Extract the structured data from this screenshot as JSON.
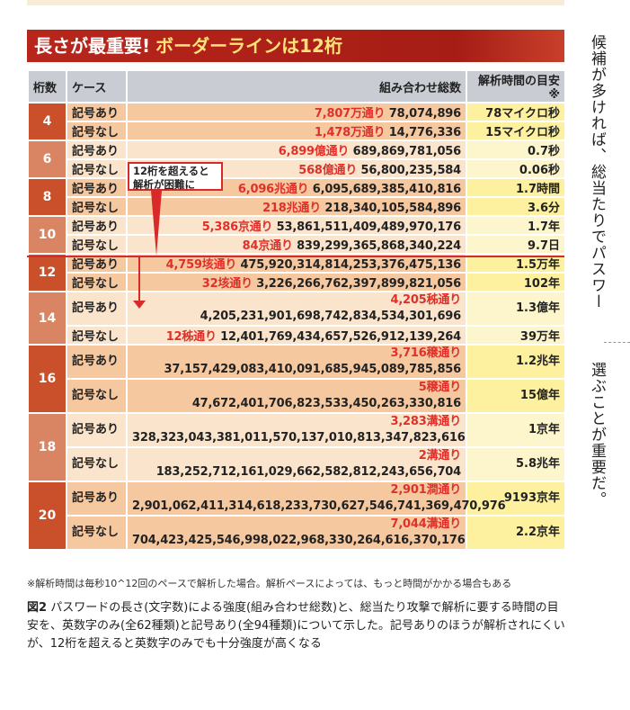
{
  "title": {
    "part1": "長さが最重要!",
    "part2": "ボーダーラインは12桁"
  },
  "headers": [
    "桁数",
    "ケース",
    "組み合わせ総数",
    "解析時間の目安※"
  ],
  "groups": [
    {
      "digits": "4",
      "rows": [
        {
          "case": "記号あり",
          "approx": "7,807万通り",
          "exact": "78,074,896",
          "time": "78マイクロ秒"
        },
        {
          "case": "記号なし",
          "approx": "1,478万通り",
          "exact": "14,776,336",
          "time": "15マイクロ秒"
        }
      ]
    },
    {
      "digits": "6",
      "rows": [
        {
          "case": "記号あり",
          "approx": "6,899億通り",
          "exact": "689,869,781,056",
          "time": "0.7秒"
        },
        {
          "case": "記号なし",
          "approx": "568億通り",
          "exact": "56,800,235,584",
          "time": "0.06秒"
        }
      ]
    },
    {
      "digits": "8",
      "rows": [
        {
          "case": "記号あり",
          "approx": "6,096兆通り",
          "exact": "6,095,689,385,410,816",
          "time": "1.7時間"
        },
        {
          "case": "記号なし",
          "approx": "218兆通り",
          "exact": "218,340,105,584,896",
          "time": "3.6分"
        }
      ]
    },
    {
      "digits": "10",
      "rows": [
        {
          "case": "記号あり",
          "approx": "5,386京通り",
          "exact": "53,861,511,409,489,970,176",
          "time": "1.7年"
        },
        {
          "case": "記号なし",
          "approx": "84京通り",
          "exact": "839,299,365,868,340,224",
          "time": "9.7日"
        }
      ]
    },
    {
      "digits": "12",
      "rows": [
        {
          "case": "記号あり",
          "approx": "4,759垓通り",
          "exact": "475,920,314,814,253,376,475,136",
          "time": "1.5万年"
        },
        {
          "case": "記号なし",
          "approx": "32垓通り",
          "exact": "3,226,266,762,397,899,821,056",
          "time": "102年"
        }
      ]
    },
    {
      "digits": "14",
      "rows": [
        {
          "case": "記号あり",
          "approx": "4,205秭通り",
          "exact": "4,205,231,901,698,742,834,534,301,696",
          "time": "1.3億年"
        },
        {
          "case": "記号なし",
          "approx": "12秭通り",
          "exact": "12,401,769,434,657,526,912,139,264",
          "time": "39万年"
        }
      ]
    },
    {
      "digits": "16",
      "rows": [
        {
          "case": "記号あり",
          "approx": "3,716穣通り",
          "exact": "37,157,429,083,410,091,685,945,089,785,856",
          "time": "1.2兆年"
        },
        {
          "case": "記号なし",
          "approx": "5穣通り",
          "exact": "47,672,401,706,823,533,450,263,330,816",
          "time": "15億年"
        }
      ]
    },
    {
      "digits": "18",
      "rows": [
        {
          "case": "記号あり",
          "approx": "3,283溝通り",
          "exact": "328,323,043,381,011,570,137,010,813,347,823,616",
          "time": "1京年"
        },
        {
          "case": "記号なし",
          "approx": "2溝通り",
          "exact": "183,252,712,161,029,662,582,812,243,656,704",
          "time": "5.8兆年"
        }
      ]
    },
    {
      "digits": "20",
      "rows": [
        {
          "case": "記号あり",
          "approx": "2,901澗通り",
          "exact": "2,901,062,411,314,618,233,730,627,546,741,369,470,976",
          "time": "9193京年"
        },
        {
          "case": "記号なし",
          "approx": "7,044溝通り",
          "exact": "704,423,425,546,998,022,968,330,264,616,370,176",
          "time": "2.2京年"
        }
      ]
    }
  ],
  "callout": {
    "line1": "12桁を超えると",
    "line2": "解析が困難に"
  },
  "footnote": "※解析時間は毎秒10^12回のペースで解析した場合。解析ペースによっては、もっと時間がかかる場合もある",
  "caption": {
    "label": "図2",
    "text": "パスワードの長さ(文字数)による強度(組み合わせ総数)と、総当たり攻撃で解析に要する時間の目安を、英数字のみ(全62種類)と記号あり(全94種類)について示した。記号ありのほうが解析されにくいが、12桁を超えると英数字のみでも十分強度が高くなる"
  },
  "side_text": {
    "col1": "候補が多ければ、総当たりでパスワー",
    "col2": "選ぶことが重要だ。"
  },
  "colors": {
    "banner": "#b8261b",
    "accent_red": "#e0302a",
    "digit_dark": "#c9502b",
    "digit_light": "#d98462"
  }
}
